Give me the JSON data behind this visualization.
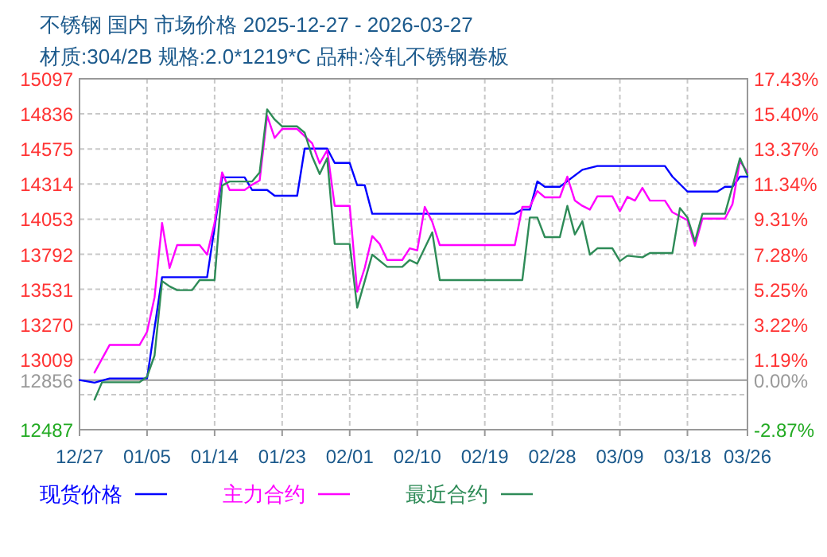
{
  "chart_data": {
    "type": "line",
    "title": "不锈钢 国内 市场价格 2025-12-27 - 2026-03-27",
    "subtitle": "材质:304/2B 规格:2.0*1219*C 品种:冷轧不锈钢卷板",
    "xlim": [
      "2025-12-27",
      "2026-03-26"
    ],
    "xticks": [
      {
        "value": "2025-12-27",
        "label": "12/27"
      },
      {
        "value": "2026-01-05",
        "label": "01/05"
      },
      {
        "value": "2026-01-14",
        "label": "01/14"
      },
      {
        "value": "2026-01-23",
        "label": "01/23"
      },
      {
        "value": "2026-02-01",
        "label": "02/01"
      },
      {
        "value": "2026-02-10",
        "label": "02/10"
      },
      {
        "value": "2026-02-19",
        "label": "02/19"
      },
      {
        "value": "2026-02-28",
        "label": "02/28"
      },
      {
        "value": "2026-03-09",
        "label": "03/09"
      },
      {
        "value": "2026-03-18",
        "label": "03/18"
      },
      {
        "value": "2026-03-26",
        "label": "03/26"
      }
    ],
    "ylim": [
      12487,
      15097
    ],
    "yticks": [
      12487,
      {
        "value": 12748,
        "label": null
      },
      13009,
      13270,
      13531,
      13792,
      14053,
      14314,
      14575,
      14836,
      15097
    ],
    "y2lim": [
      -2.87,
      17.43
    ],
    "y2ticks": [
      {
        "value": -2.87,
        "label": "-2.87%"
      },
      {
        "value": 0,
        "label": "0.00%"
      },
      {
        "value": 1.19,
        "label": "1.19%"
      },
      {
        "value": 3.22,
        "label": "3.22%"
      },
      {
        "value": 5.25,
        "label": "5.25%"
      },
      {
        "value": 7.28,
        "label": "7.28%"
      },
      {
        "value": 9.31,
        "label": "9.31%"
      },
      {
        "value": 11.34,
        "label": "11.34%"
      },
      {
        "value": 13.37,
        "label": "13.37%"
      },
      {
        "value": 15.4,
        "label": "15.40%"
      },
      {
        "value": 17.43,
        "label": "17.43%"
      }
    ],
    "ref_lines": [
      {
        "axis": "y",
        "value": 12856,
        "label": "12856",
        "color": "#999999"
      }
    ],
    "grid": true,
    "legend": "bottom",
    "line_style": "solid",
    "series": [
      {
        "name": "现货价格",
        "color": "#0000ff",
        "x": [
          "2025-12-27",
          "2025-12-29",
          "2025-12-31",
          "2026-01-05",
          "2026-01-07",
          "2026-01-13",
          "2026-01-15",
          "2026-01-18",
          "2026-01-19",
          "2026-01-21",
          "2026-01-22",
          "2026-01-25",
          "2026-01-26",
          "2026-01-29",
          "2026-01-30",
          "2026-02-01",
          "2026-02-02",
          "2026-02-03",
          "2026-02-04",
          "2026-02-23",
          "2026-02-24",
          "2026-02-25",
          "2026-02-26",
          "2026-02-27",
          "2026-03-01",
          "2026-03-04",
          "2026-03-06",
          "2026-03-15",
          "2026-03-16",
          "2026-03-18",
          "2026-03-22",
          "2026-03-23",
          "2026-03-24",
          "2026-03-25",
          "2026-03-26"
        ],
        "values": [
          12856,
          12837,
          12868,
          12868,
          13621,
          13621,
          14364,
          14364,
          14270,
          14270,
          14227,
          14227,
          14578,
          14578,
          14471,
          14471,
          14305,
          14305,
          14093,
          14093,
          14124,
          14124,
          14333,
          14294,
          14294,
          14420,
          14448,
          14448,
          14369,
          14258,
          14258,
          14294,
          14294,
          14369,
          14369
        ]
      },
      {
        "name": "主力合约",
        "color": "#ff00ff",
        "x": [
          "2025-12-29",
          "2025-12-31",
          "2026-01-04",
          "2026-01-05",
          "2026-01-06",
          "2026-01-07",
          "2026-01-08",
          "2026-01-09",
          "2026-01-12",
          "2026-01-13",
          "2026-01-14",
          "2026-01-15",
          "2026-01-16",
          "2026-01-18",
          "2026-01-19",
          "2026-01-20",
          "2026-01-21",
          "2026-01-22",
          "2026-01-23",
          "2026-01-25",
          "2026-01-27",
          "2026-01-28",
          "2026-01-29",
          "2026-01-30",
          "2026-02-01",
          "2026-02-02",
          "2026-02-03",
          "2026-02-04",
          "2026-02-05",
          "2026-02-06",
          "2026-02-08",
          "2026-02-09",
          "2026-02-10",
          "2026-02-11",
          "2026-02-12",
          "2026-02-13",
          "2026-02-23",
          "2026-02-24",
          "2026-02-25",
          "2026-02-26",
          "2026-02-27",
          "2026-03-01",
          "2026-03-02",
          "2026-03-03",
          "2026-03-04",
          "2026-03-05",
          "2026-03-06",
          "2026-03-08",
          "2026-03-09",
          "2026-03-10",
          "2026-03-11",
          "2026-03-12",
          "2026-03-13",
          "2026-03-15",
          "2026-03-16",
          "2026-03-18",
          "2026-03-19",
          "2026-03-20",
          "2026-03-23",
          "2026-03-24",
          "2026-03-25",
          "2026-03-26"
        ],
        "values": [
          12912,
          13117,
          13117,
          13215,
          13473,
          14025,
          13690,
          13860,
          13860,
          13789,
          14025,
          14400,
          14270,
          14270,
          14309,
          14341,
          14822,
          14657,
          14724,
          14724,
          14617,
          14467,
          14566,
          14152,
          14152,
          13513,
          13690,
          13927,
          13868,
          13749,
          13749,
          13836,
          13821,
          14144,
          14033,
          13860,
          13860,
          14144,
          14144,
          14262,
          14215,
          14215,
          14369,
          14191,
          14152,
          14124,
          14223,
          14223,
          14112,
          14219,
          14191,
          14286,
          14191,
          14191,
          14104,
          14045,
          13856,
          14057,
          14057,
          14164,
          14487,
          14400
        ]
      },
      {
        "name": "最近合约",
        "color": "#2e8b57",
        "x": [
          "2025-12-29",
          "2025-12-30",
          "2026-01-04",
          "2026-01-05",
          "2026-01-06",
          "2026-01-07",
          "2026-01-08",
          "2026-01-09",
          "2026-01-11",
          "2026-01-12",
          "2026-01-14",
          "2026-01-15",
          "2026-01-16",
          "2026-01-19",
          "2026-01-20",
          "2026-01-21",
          "2026-01-22",
          "2026-01-23",
          "2026-01-25",
          "2026-01-26",
          "2026-01-27",
          "2026-01-28",
          "2026-01-29",
          "2026-01-30",
          "2026-02-01",
          "2026-02-02",
          "2026-02-03",
          "2026-02-04",
          "2026-02-06",
          "2026-02-08",
          "2026-02-09",
          "2026-02-10",
          "2026-02-12",
          "2026-02-13",
          "2026-02-24",
          "2026-02-25",
          "2026-02-26",
          "2026-02-27",
          "2026-03-01",
          "2026-03-02",
          "2026-03-03",
          "2026-03-04",
          "2026-03-05",
          "2026-03-06",
          "2026-03-08",
          "2026-03-09",
          "2026-03-10",
          "2026-03-12",
          "2026-03-13",
          "2026-03-16",
          "2026-03-17",
          "2026-03-18",
          "2026-03-19",
          "2026-03-20",
          "2026-03-23",
          "2026-03-24",
          "2026-03-25",
          "2026-03-26"
        ],
        "values": [
          12710,
          12840,
          12840,
          12881,
          13039,
          13592,
          13553,
          13525,
          13525,
          13600,
          13600,
          14302,
          14333,
          14333,
          14400,
          14870,
          14794,
          14743,
          14743,
          14696,
          14518,
          14388,
          14506,
          13868,
          13868,
          13395,
          13592,
          13789,
          13698,
          13698,
          13749,
          13722,
          13955,
          13600,
          13600,
          14065,
          14065,
          13919,
          13919,
          14152,
          13939,
          14037,
          13789,
          13836,
          13836,
          13741,
          13781,
          13769,
          13801,
          13801,
          14136,
          14065,
          13888,
          14093,
          14093,
          14294,
          14506,
          14380
        ]
      }
    ]
  }
}
